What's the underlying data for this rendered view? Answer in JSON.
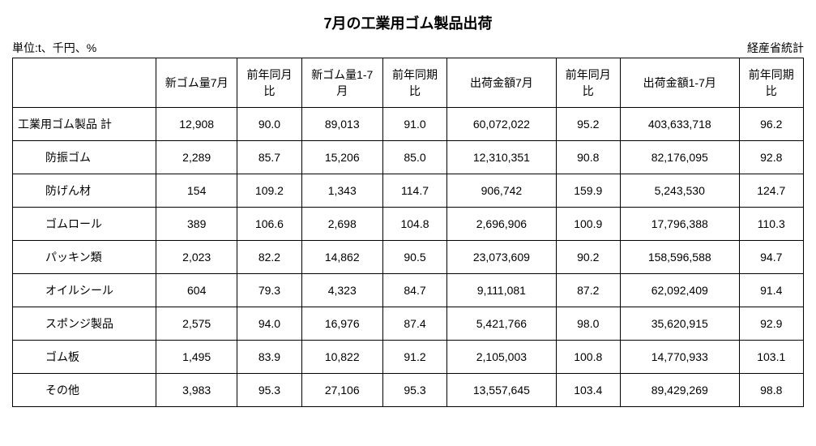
{
  "title": "7月の工業用ゴム製品出荷",
  "unit_label": "単位:t、千円、%",
  "source_label": "経産省統計",
  "columns": [
    "",
    "新ゴム量7月",
    "前年同月比",
    "新ゴム量1-7月",
    "前年同期比",
    "出荷金額7月",
    "前年同月比",
    "出荷金額1-7月",
    "前年同期比"
  ],
  "rows": [
    {
      "label": "工業用ゴム製品 計",
      "indent": false,
      "vals": [
        "12,908",
        "90.0",
        "89,013",
        "91.0",
        "60,072,022",
        "95.2",
        "403,633,718",
        "96.2"
      ]
    },
    {
      "label": "防振ゴム",
      "indent": true,
      "vals": [
        "2,289",
        "85.7",
        "15,206",
        "85.0",
        "12,310,351",
        "90.8",
        "82,176,095",
        "92.8"
      ]
    },
    {
      "label": "防げん材",
      "indent": true,
      "vals": [
        "154",
        "109.2",
        "1,343",
        "114.7",
        "906,742",
        "159.9",
        "5,243,530",
        "124.7"
      ]
    },
    {
      "label": "ゴムロール",
      "indent": true,
      "vals": [
        "389",
        "106.6",
        "2,698",
        "104.8",
        "2,696,906",
        "100.9",
        "17,796,388",
        "110.3"
      ]
    },
    {
      "label": "パッキン類",
      "indent": true,
      "vals": [
        "2,023",
        "82.2",
        "14,862",
        "90.5",
        "23,073,609",
        "90.2",
        "158,596,588",
        "94.7"
      ]
    },
    {
      "label": "オイルシール",
      "indent": true,
      "vals": [
        "604",
        "79.3",
        "4,323",
        "84.7",
        "9,111,081",
        "87.2",
        "62,092,409",
        "91.4"
      ]
    },
    {
      "label": "スポンジ製品",
      "indent": true,
      "vals": [
        "2,575",
        "94.0",
        "16,976",
        "87.4",
        "5,421,766",
        "98.0",
        "35,620,915",
        "92.9"
      ]
    },
    {
      "label": "ゴム板",
      "indent": true,
      "vals": [
        "1,495",
        "83.9",
        "10,822",
        "91.2",
        "2,105,003",
        "100.8",
        "14,770,933",
        "103.1"
      ]
    },
    {
      "label": "その他",
      "indent": true,
      "vals": [
        "3,983",
        "95.3",
        "27,106",
        "95.3",
        "13,557,645",
        "103.4",
        "89,429,269",
        "98.8"
      ]
    }
  ],
  "style": {
    "background_color": "#ffffff",
    "text_color": "#000000",
    "border_color": "#000000",
    "title_fontsize": 18,
    "cell_fontsize": 14,
    "font_family": "MS PGothic"
  }
}
